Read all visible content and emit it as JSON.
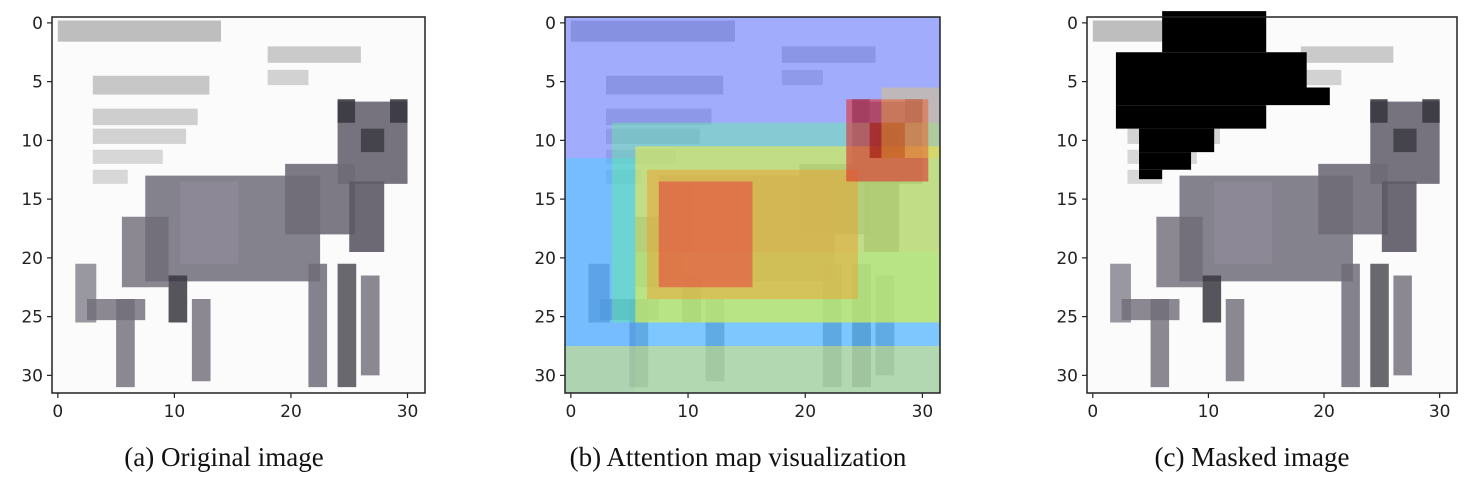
{
  "panels": [
    {
      "id": "original",
      "caption": "(a) Original image",
      "xticks": [
        "0",
        "10",
        "20",
        "30"
      ],
      "yticks": [
        "0",
        "5",
        "10",
        "15",
        "20",
        "25",
        "30"
      ],
      "content": "original",
      "axis_range": [
        0,
        31
      ]
    },
    {
      "id": "attention",
      "caption": "(b) Attention map visualization",
      "xticks": [
        "0",
        "10",
        "20",
        "30"
      ],
      "yticks": [
        "0",
        "5",
        "10",
        "15",
        "20",
        "25",
        "30"
      ],
      "content": "attention",
      "axis_range": [
        0,
        31
      ],
      "colormap": "jet"
    },
    {
      "id": "masked",
      "caption": "(c) Masked image",
      "xticks": [
        "0",
        "10",
        "20",
        "30"
      ],
      "yticks": [
        "0",
        "5",
        "10",
        "15",
        "20",
        "25",
        "30"
      ],
      "content": "masked",
      "axis_range": [
        0,
        31
      ]
    }
  ],
  "colors": {
    "frame": "#222222",
    "mask": "#000000",
    "cat_body": "#6f6c78",
    "cat_dark": "#3a3740",
    "text_gray": "#a9a9a9"
  }
}
